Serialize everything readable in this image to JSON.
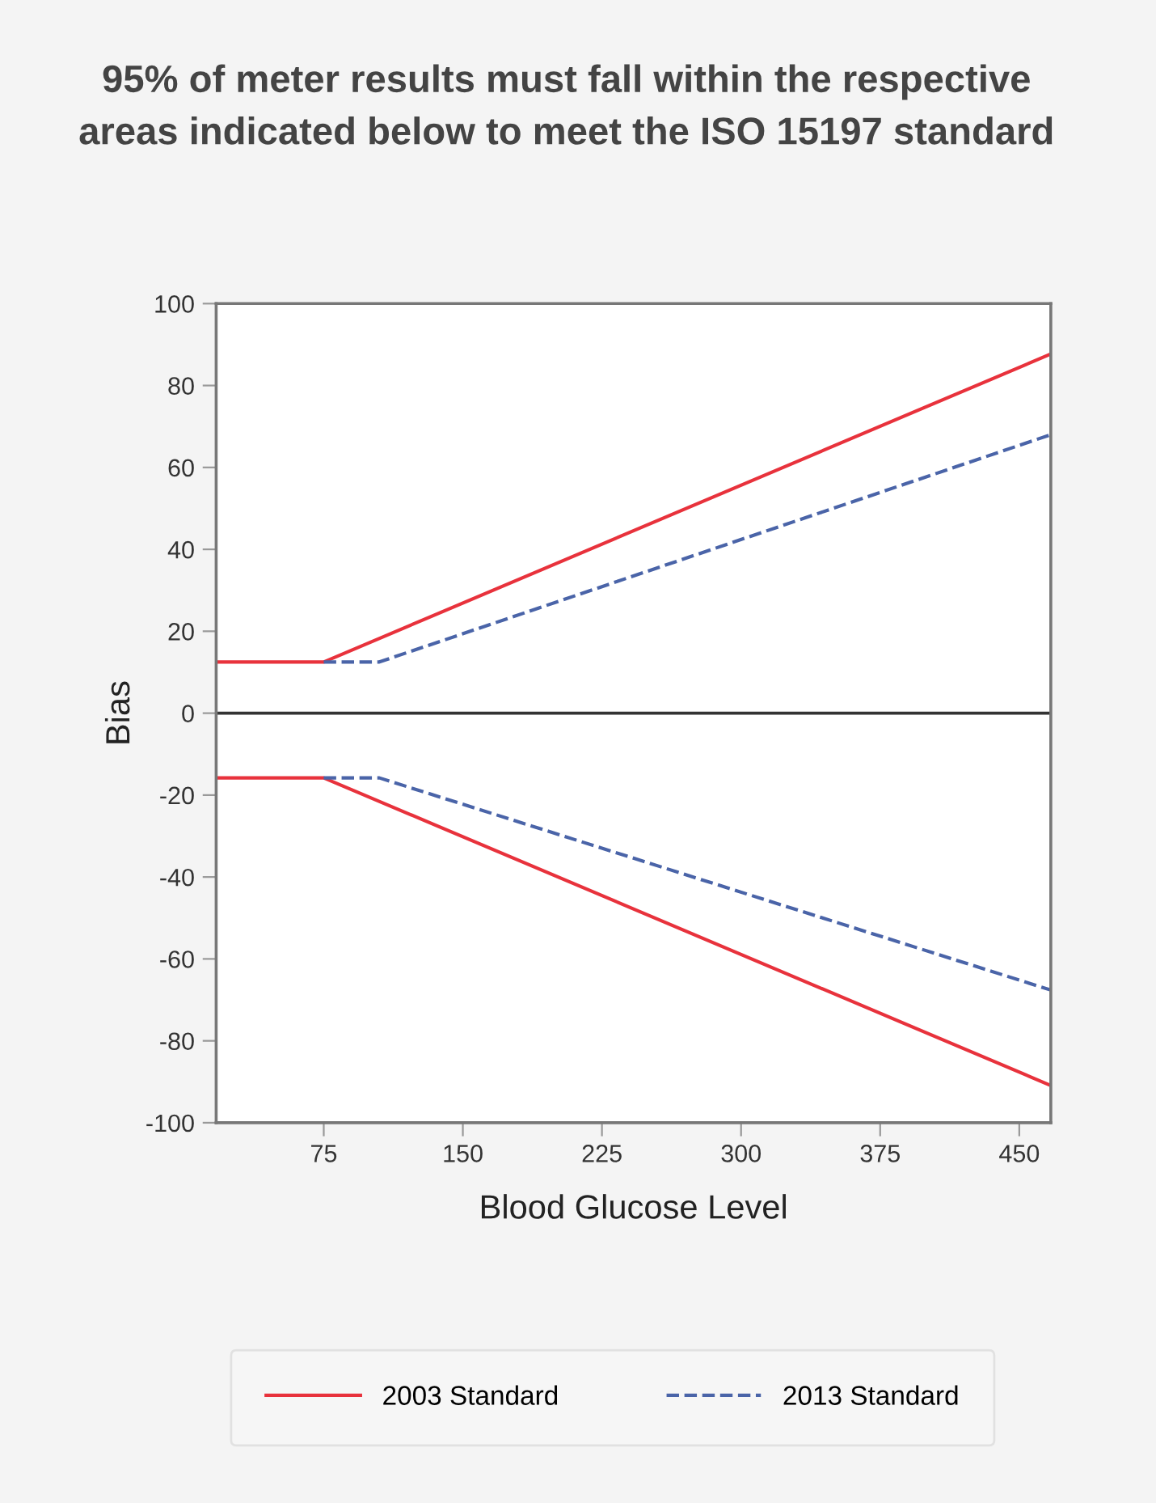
{
  "chart_data": {
    "type": "line",
    "title": "95% of meter results must fall within the respective\nareas indicated below to meet the ISO 15197 standard",
    "xlabel": "Blood Glucose Level",
    "ylabel": "Bias",
    "series": [
      {
        "name": "2003 Standard",
        "color": "#e8323c",
        "line_style": "solid",
        "x": [
          17,
          75,
          467
        ],
        "values": [
          12.5,
          12.5,
          87.7
        ]
      },
      {
        "name": "2013 Standard",
        "color": "#4a64a8",
        "line_style": "dashed",
        "x": [
          75,
          105,
          467
        ],
        "values": [
          12.5,
          12.5,
          68
        ]
      },
      {
        "color": "#e8323c",
        "line_style": "solid",
        "x": [
          17,
          75,
          467
        ],
        "values": [
          -15.8,
          -15.8,
          -90.9
        ]
      },
      {
        "color": "#4a64a8",
        "line_style": "dashed",
        "x": [
          75,
          105,
          467
        ],
        "values": [
          -15.8,
          -15.8,
          -67.6
        ]
      }
    ],
    "xlim": [
      17,
      467
    ],
    "ylim": [
      -100,
      100
    ],
    "xticks": [
      75,
      150,
      225,
      300,
      375,
      450
    ],
    "yticks": [
      -100,
      -80,
      -60,
      -40,
      -20,
      0,
      20,
      40,
      60,
      80,
      100
    ],
    "ref_lines": [
      {
        "axis": "y",
        "value": 0,
        "color": "#333333"
      }
    ],
    "grid": false,
    "legend": "bottom",
    "marker": "none"
  }
}
